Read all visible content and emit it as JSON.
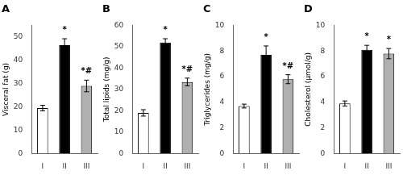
{
  "chart_data": [
    {
      "type": "bar",
      "title": "A",
      "ylabel": "Visceral fat (g)",
      "categories": [
        "I",
        "II",
        "III"
      ],
      "values": [
        19.5,
        46.5,
        29.0
      ],
      "errors": [
        1.2,
        2.8,
        2.5
      ],
      "annotations": [
        null,
        "*",
        "*#"
      ],
      "colors": [
        "white",
        "black",
        "#b0b0b0"
      ],
      "ylim": [
        0,
        55
      ],
      "yticks": [
        0,
        10,
        20,
        30,
        40,
        50
      ],
      "grid": false
    },
    {
      "type": "bar",
      "title": "B",
      "ylabel": "Total lipids (mg/g)",
      "categories": [
        "I",
        "II",
        "III"
      ],
      "values": [
        19.0,
        52.0,
        33.5
      ],
      "errors": [
        1.5,
        1.8,
        1.8
      ],
      "annotations": [
        null,
        "*",
        "*#"
      ],
      "colors": [
        "white",
        "black",
        "#b0b0b0"
      ],
      "ylim": [
        0,
        60
      ],
      "yticks": [
        0,
        10,
        20,
        30,
        40,
        50,
        60
      ],
      "grid": false
    },
    {
      "type": "bar",
      "title": "C",
      "ylabel": "Triglycerides (mg/g)",
      "categories": [
        "I",
        "II",
        "III"
      ],
      "values": [
        3.7,
        7.7,
        5.8
      ],
      "errors": [
        0.15,
        0.7,
        0.35
      ],
      "annotations": [
        null,
        "*",
        "*#"
      ],
      "colors": [
        "white",
        "black",
        "#b0b0b0"
      ],
      "ylim": [
        0,
        10
      ],
      "yticks": [
        0,
        2,
        4,
        6,
        8,
        10
      ],
      "grid": false
    },
    {
      "type": "bar",
      "title": "D",
      "ylabel": "Cholesterol (μmol/g)",
      "categories": [
        "I",
        "II",
        "III"
      ],
      "values": [
        3.9,
        8.1,
        7.8
      ],
      "errors": [
        0.2,
        0.35,
        0.4
      ],
      "annotations": [
        null,
        "*",
        "*"
      ],
      "colors": [
        "white",
        "black",
        "#b0b0b0"
      ],
      "ylim": [
        0,
        10
      ],
      "yticks": [
        0,
        2,
        4,
        6,
        8,
        10
      ],
      "grid": false
    }
  ]
}
